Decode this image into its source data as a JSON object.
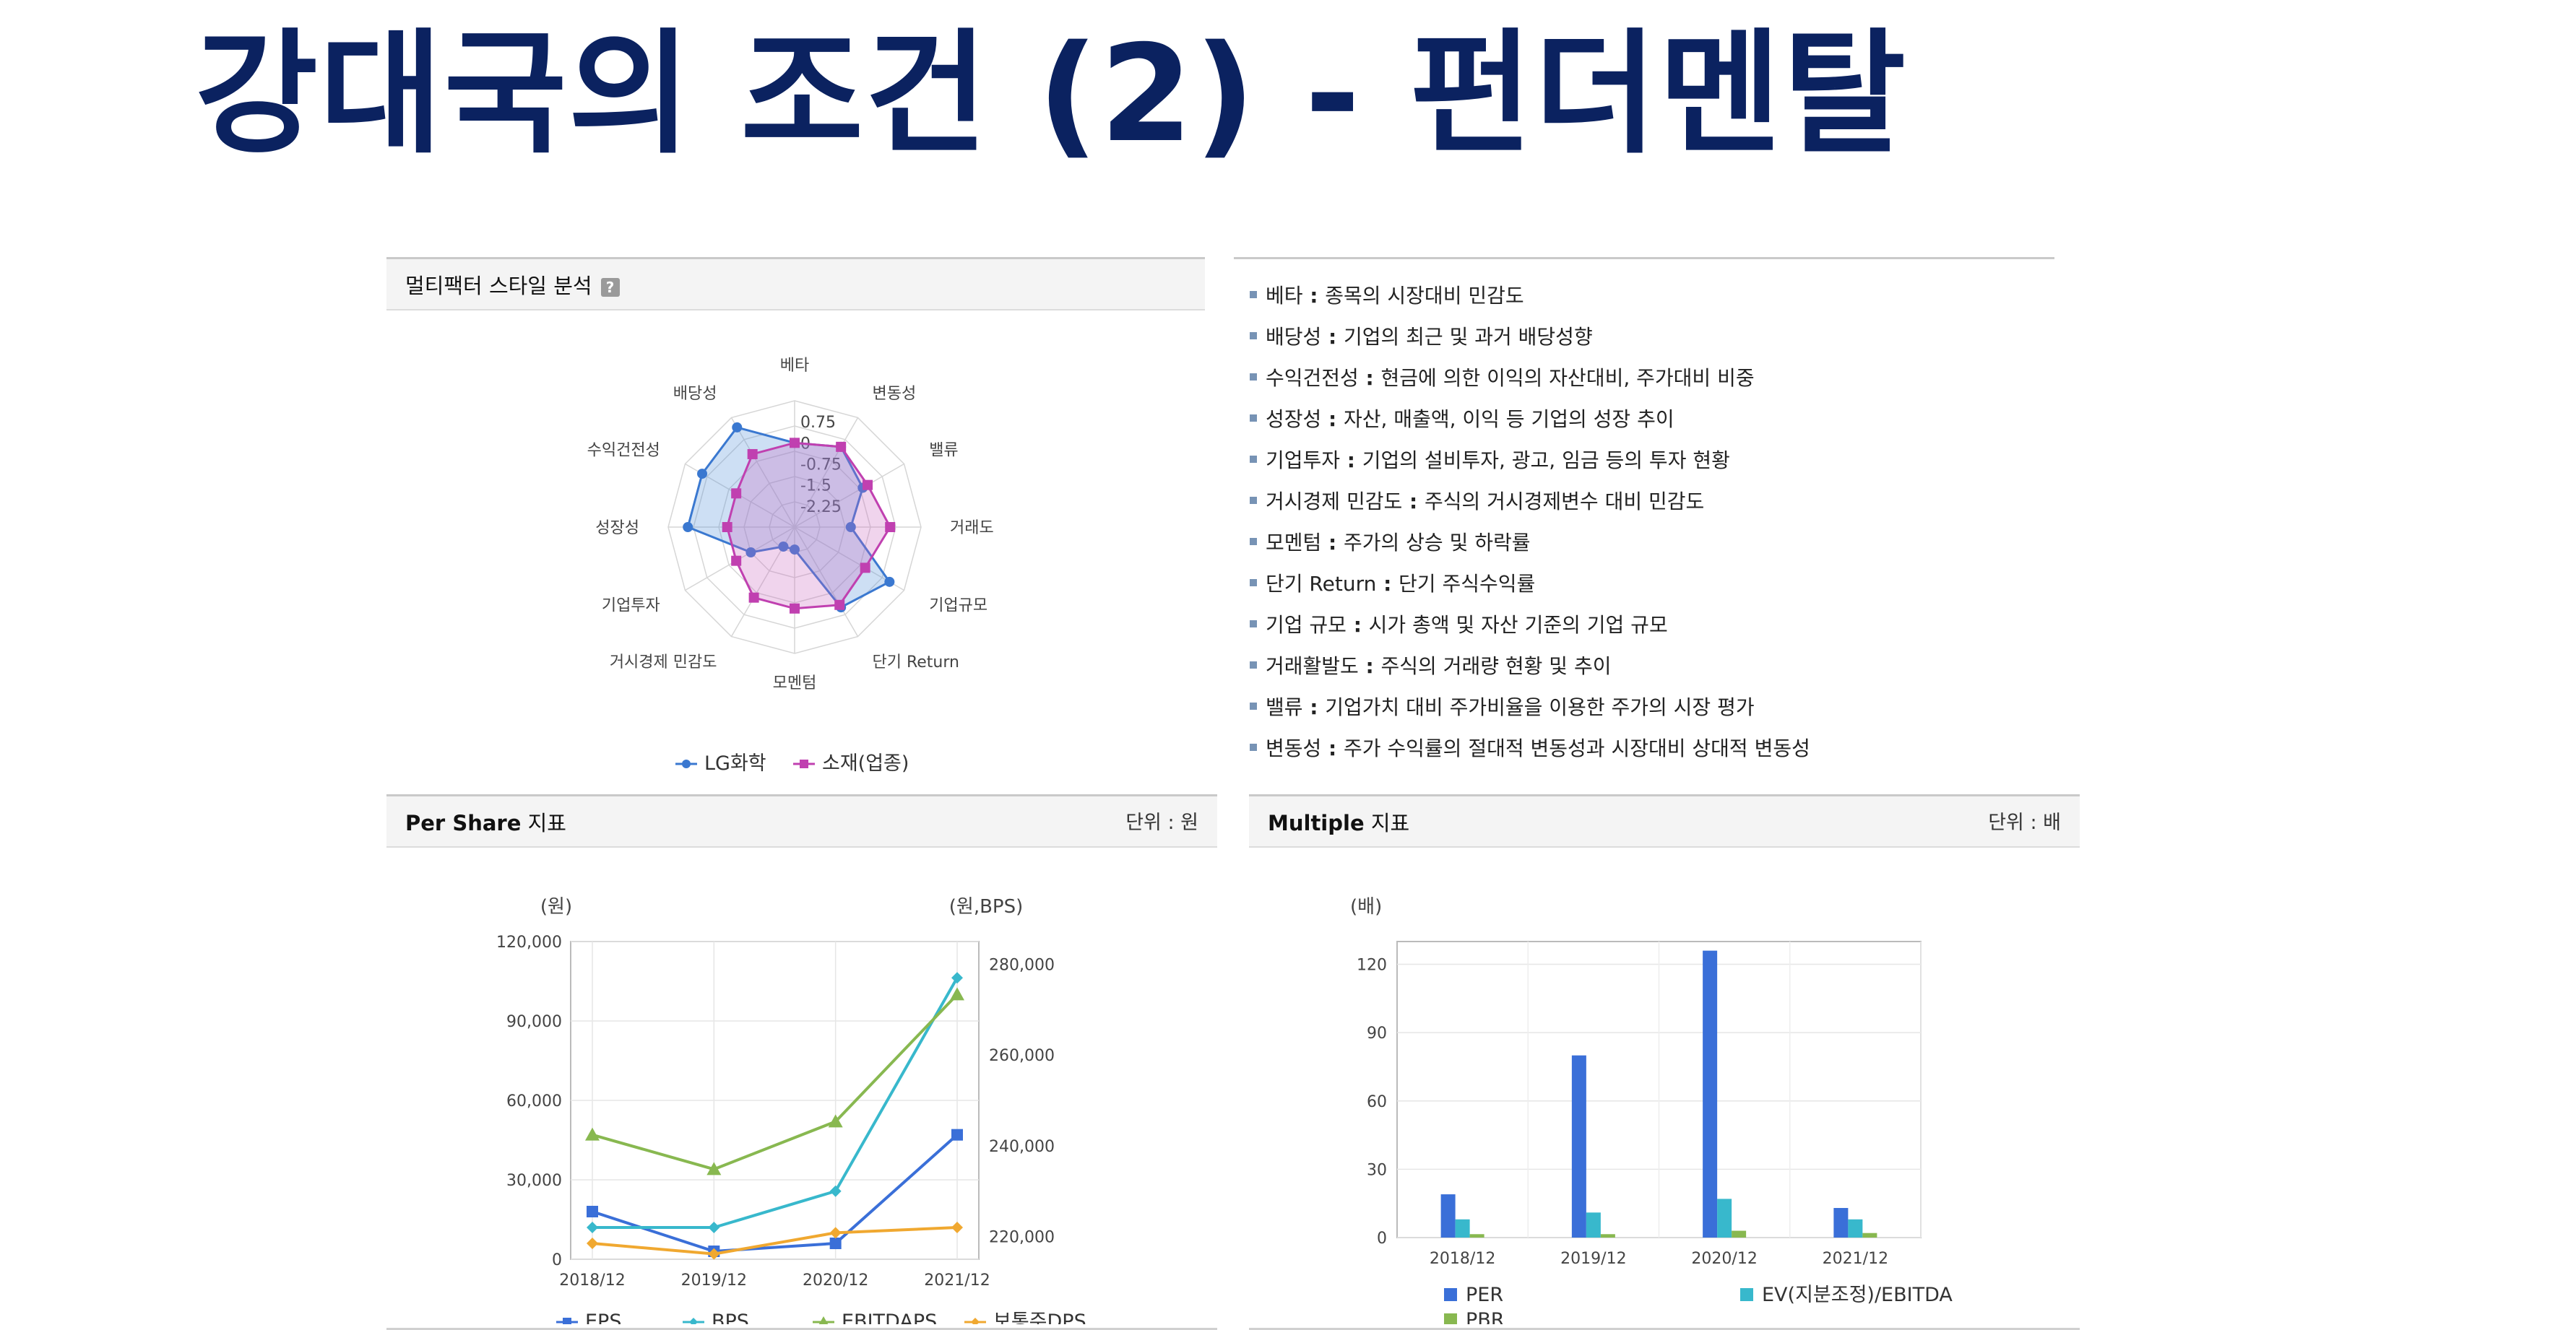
{
  "title": "강대국의 조건 (2) - 펀더멘탈",
  "radar": {
    "header": "멀티팩터 스타일 분석",
    "help_icon": "?",
    "legend": [
      "LG화학",
      "소재(업종)"
    ]
  },
  "definitions": [
    {
      "term": "베타",
      "desc": "종목의 시장대비 민감도"
    },
    {
      "term": "배당성",
      "desc": "기업의 최근 및 과거 배당성향"
    },
    {
      "term": "수익건전성",
      "desc": "현금에 의한 이익의 자산대비, 주가대비 비중"
    },
    {
      "term": "성장성",
      "desc": "자산, 매출액, 이익 등 기업의 성장 추이"
    },
    {
      "term": "기업투자",
      "desc": "기업의 설비투자, 광고, 임금 등의 투자 현황"
    },
    {
      "term": "거시경제 민감도",
      "desc": "주식의 거시경제변수 대비 민감도"
    },
    {
      "term": "모멘텀",
      "desc": "주가의 상승 및 하락률"
    },
    {
      "term": "단기 Return",
      "desc": "단기 주식수익률"
    },
    {
      "term": "기업 규모",
      "desc": "시가 총액 및 자산 기준의 기업 규모"
    },
    {
      "term": "거래활발도",
      "desc": "주식의 거래량 현황 및 추이"
    },
    {
      "term": "밸류",
      "desc": "기업가치 대비 주가비율을 이용한 주가의 시장 평가"
    },
    {
      "term": "변동성",
      "desc": "주가 수익률의 절대적 변동성과 시장대비 상대적 변동성"
    }
  ],
  "pershare": {
    "header_bold": "Per Share",
    "header_rest": " 지표",
    "unit": "단위 : 원",
    "left_unit": "(원)",
    "right_unit": "(원,BPS)"
  },
  "multiple": {
    "header_bold": "Multiple",
    "header_rest": " 지표",
    "unit": "단위 : 배",
    "left_unit": "(배)"
  },
  "colors": {
    "title": "#0b2260",
    "lg": "#3a78d0",
    "sector": "#c040b0",
    "eps": "#3a6fd8",
    "bps": "#38b8cc",
    "ebitdaps": "#88b850",
    "dps": "#f0a830",
    "per": "#3a6fd8",
    "ev": "#38b8cc",
    "pbr": "#88b850"
  },
  "chart_data": [
    {
      "type": "radar",
      "axes": [
        "베타",
        "변동성",
        "밸류",
        "거래도",
        "기업규모",
        "단기 Return",
        "모멘텀",
        "거시경제 민감도",
        "기업투자",
        "성장성",
        "수익건전성",
        "배당성"
      ],
      "ticks": [
        "0.75",
        "0",
        "-0.75",
        "-1.5",
        "-2.25"
      ],
      "range": [
        -3,
        1.5
      ],
      "series": [
        {
          "name": "LG화학",
          "values": [
            0.0,
            0.3,
            -0.2,
            -1.0,
            0.9,
            0.3,
            -2.2,
            -2.2,
            -1.2,
            0.8,
            0.8,
            1.1
          ]
        },
        {
          "name": "소재(업종)",
          "values": [
            0.0,
            0.3,
            0.0,
            0.4,
            -0.1,
            0.2,
            -0.1,
            -0.1,
            -0.6,
            -0.6,
            -0.6,
            0.0
          ]
        }
      ]
    },
    {
      "type": "line",
      "categories": [
        "2018/12",
        "2019/12",
        "2020/12",
        "2021/12"
      ],
      "ylim_left": [
        0,
        120000
      ],
      "yticks_left": [
        "0",
        "30,000",
        "60,000",
        "90,000",
        "120,000"
      ],
      "ylim_right": [
        215000,
        285000
      ],
      "yticks_right": [
        "220,000",
        "240,000",
        "260,000",
        "280,000"
      ],
      "series": [
        {
          "name": "EPS",
          "axis": "left",
          "values": [
            18000,
            3000,
            6000,
            47000
          ]
        },
        {
          "name": "BPS",
          "axis": "right",
          "values": [
            222000,
            222000,
            230000,
            277000
          ]
        },
        {
          "name": "EBITDAPS",
          "axis": "left",
          "values": [
            47000,
            34000,
            52000,
            100000
          ]
        },
        {
          "name": "보통주DPS",
          "axis": "left",
          "values": [
            6000,
            2000,
            10000,
            12000
          ]
        }
      ]
    },
    {
      "type": "bar",
      "categories": [
        "2018/12",
        "2019/12",
        "2020/12",
        "2021/12"
      ],
      "ylim": [
        0,
        130
      ],
      "yticks": [
        "0",
        "30",
        "60",
        "90",
        "120"
      ],
      "series": [
        {
          "name": "PER",
          "values": [
            19,
            80,
            126,
            13
          ]
        },
        {
          "name": "EV(지분조정)/EBITDA",
          "values": [
            8,
            11,
            17,
            8
          ]
        },
        {
          "name": "PBR",
          "values": [
            1.5,
            1.5,
            3,
            2
          ]
        }
      ]
    }
  ]
}
